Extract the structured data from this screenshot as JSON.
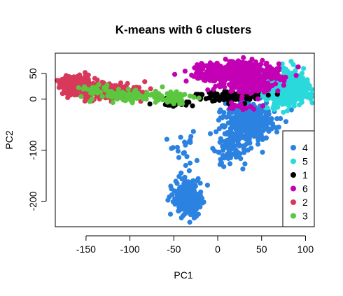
{
  "chart_data": {
    "type": "scatter",
    "title": "K-means with 6 clusters",
    "xlabel": "PC1",
    "ylabel": "PC2",
    "xlim": [
      -185,
      110
    ],
    "ylim": [
      -250,
      90
    ],
    "xticks": [
      -150,
      -100,
      -50,
      0,
      50,
      100
    ],
    "yticks": [
      -200,
      -100,
      0,
      50
    ],
    "grid": false,
    "legend": {
      "position": "bottom-right",
      "entries": [
        {
          "label": "4",
          "color": "#2c82e0"
        },
        {
          "label": "5",
          "color": "#2ad9dc"
        },
        {
          "label": "1",
          "color": "#000000"
        },
        {
          "label": "6",
          "color": "#c400b4"
        },
        {
          "label": "2",
          "color": "#d8395a"
        },
        {
          "label": "3",
          "color": "#5bc73e"
        }
      ]
    },
    "series": [
      {
        "name": "4",
        "color": "#2c82e0",
        "clusters": [
          {
            "cx": 35,
            "cy": -45,
            "sx": 14,
            "sy": 22,
            "n": 420
          },
          {
            "cx": 15,
            "cy": -100,
            "sx": 10,
            "sy": 18,
            "n": 70
          },
          {
            "cx": -35,
            "cy": -195,
            "sx": 8,
            "sy": 17,
            "n": 260
          },
          {
            "cx": -40,
            "cy": -110,
            "sx": 9,
            "sy": 25,
            "n": 25
          }
        ]
      },
      {
        "name": "5",
        "color": "#2ad9dc",
        "clusters": [
          {
            "cx": 78,
            "cy": 22,
            "sx": 13,
            "sy": 16,
            "n": 500
          }
        ]
      },
      {
        "name": "1",
        "color": "#000000",
        "clusters": [
          {
            "cx": 15,
            "cy": 5,
            "sx": 20,
            "sy": 6,
            "n": 90
          },
          {
            "cx": -50,
            "cy": -8,
            "sx": 12,
            "sy": 5,
            "n": 20
          }
        ]
      },
      {
        "name": "6",
        "color": "#c400b4",
        "clusters": [
          {
            "cx": 20,
            "cy": 52,
            "sx": 22,
            "sy": 10,
            "n": 550
          },
          {
            "cx": 35,
            "cy": 30,
            "sx": 16,
            "sy": 10,
            "n": 200
          },
          {
            "cx": 25,
            "cy": -15,
            "sx": 10,
            "sy": 5,
            "n": 15
          }
        ]
      },
      {
        "name": "2",
        "color": "#d8395a",
        "clusters": [
          {
            "cx": -160,
            "cy": 28,
            "sx": 9,
            "sy": 8,
            "n": 320
          },
          {
            "cx": -125,
            "cy": 15,
            "sx": 16,
            "sy": 8,
            "n": 180
          },
          {
            "cx": -90,
            "cy": 10,
            "sx": 10,
            "sy": 6,
            "n": 30
          }
        ]
      },
      {
        "name": "3",
        "color": "#5bc73e",
        "clusters": [
          {
            "cx": -95,
            "cy": 5,
            "sx": 22,
            "sy": 7,
            "n": 90
          },
          {
            "cx": -140,
            "cy": 18,
            "sx": 8,
            "sy": 5,
            "n": 25
          },
          {
            "cx": -45,
            "cy": 2,
            "sx": 8,
            "sy": 5,
            "n": 25
          }
        ]
      }
    ]
  }
}
